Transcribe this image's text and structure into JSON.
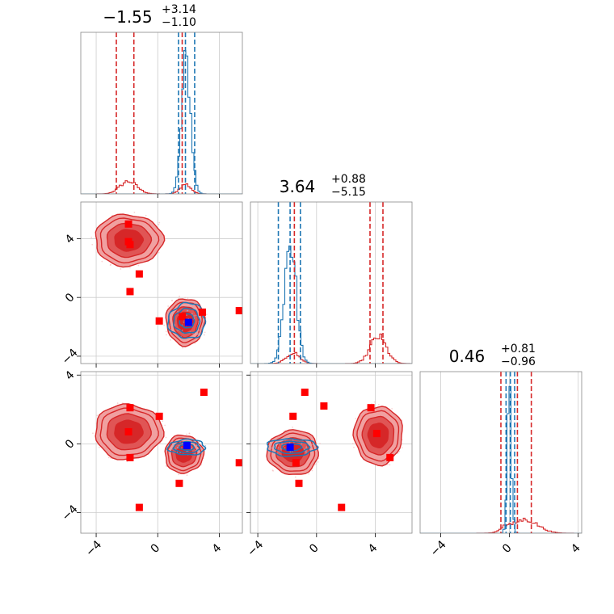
{
  "chart_data": {
    "type": "corner",
    "colors": {
      "red": "#d62728",
      "blue": "#1f77b4",
      "red_light": "#f0a0a0",
      "red_mid": "#e05555",
      "marker_red": "#ff0000",
      "marker_blue": "#0000ff",
      "grid": "#cccccc"
    },
    "ranges": [
      [
        -5,
        5.5
      ],
      [
        -4.5,
        6.5
      ],
      [
        -5.2,
        4.2
      ]
    ],
    "ticks": [
      {
        "values": [
          -4,
          0,
          4
        ],
        "labels": [
          "−4",
          "0",
          "4"
        ]
      },
      {
        "values": [
          -4,
          0,
          4
        ],
        "labels": [
          "−4",
          "0",
          "4"
        ]
      },
      {
        "values": [
          -4,
          0,
          4
        ],
        "labels": [
          "−4",
          "0",
          "4"
        ]
      }
    ],
    "titles": [
      {
        "value": "−1.55",
        "plus": "+3.14",
        "minus": "−1.10"
      },
      {
        "value": "3.64",
        "plus": "+0.88",
        "minus": "−5.15"
      },
      {
        "value": "0.46",
        "plus": "+0.81",
        "minus": "−0.96"
      }
    ],
    "diag_red_quantiles": [
      [
        -2.69,
        -1.55,
        1.59
      ],
      [
        -1.51,
        3.64,
        4.52
      ],
      [
        -0.5,
        0.46,
        1.27
      ]
    ],
    "diag_blue_quantiles": [
      [
        1.35,
        1.8,
        2.4
      ],
      [
        -2.6,
        -1.8,
        -1.1
      ],
      [
        -0.2,
        0.05,
        0.3
      ]
    ],
    "diag_red_modes": [
      [
        {
          "mu": -1.9,
          "sd": 0.55,
          "w": 0.26
        },
        {
          "mu": 1.8,
          "sd": 0.35,
          "w": 0.2
        }
      ],
      [
        {
          "mu": 4.2,
          "sd": 0.55,
          "w": 0.55
        },
        {
          "mu": -1.6,
          "sd": 0.45,
          "w": 0.22
        }
      ],
      [
        {
          "mu": 0.9,
          "sd": 0.75,
          "w": 0.28
        },
        {
          "mu": -0.3,
          "sd": 0.25,
          "w": 0.08
        }
      ]
    ],
    "diag_blue_modes": [
      [
        {
          "mu": 1.85,
          "sd": 0.3,
          "w": 0.9
        }
      ],
      [
        {
          "mu": -1.8,
          "sd": 0.4,
          "w": 0.85
        }
      ],
      [
        {
          "mu": 0.0,
          "sd": 0.12,
          "w": 0.95
        }
      ]
    ],
    "blobs_red": {
      "p10": [
        {
          "cx": -1.9,
          "cy": 3.9,
          "rx": 2.2,
          "ry": 1.75
        },
        {
          "cx": 1.8,
          "cy": -1.65,
          "rx": 1.25,
          "ry": 1.6
        }
      ],
      "p20": [
        {
          "cx": -1.9,
          "cy": 0.7,
          "rx": 2.2,
          "ry": 1.6
        },
        {
          "cx": 1.7,
          "cy": -0.6,
          "rx": 1.25,
          "ry": 1.1
        }
      ],
      "p21": [
        {
          "cx": -1.6,
          "cy": -0.5,
          "rx": 1.75,
          "ry": 1.3
        },
        {
          "cx": 4.2,
          "cy": 0.5,
          "rx": 1.65,
          "ry": 1.7
        }
      ]
    },
    "blobs_blue": {
      "p10": [
        {
          "cx": 1.9,
          "cy": -1.6,
          "rx": 1.2,
          "ry": 1.2
        }
      ],
      "p20": [
        {
          "cx": 1.9,
          "cy": -0.2,
          "rx": 1.2,
          "ry": 0.45
        }
      ],
      "p21": [
        {
          "cx": -1.7,
          "cy": -0.2,
          "rx": 1.7,
          "ry": 0.5
        }
      ]
    },
    "markers_red": {
      "p10": [
        [
          -1.9,
          5.0
        ],
        [
          -1.9,
          3.8
        ],
        [
          -1.8,
          3.6
        ],
        [
          -1.2,
          1.6
        ],
        [
          -1.8,
          0.4
        ],
        [
          1.6,
          -1.3
        ],
        [
          2.9,
          -1.0
        ],
        [
          0.1,
          -1.6
        ],
        [
          5.3,
          -0.9
        ]
      ],
      "p20": [
        [
          -1.8,
          2.1
        ],
        [
          0.1,
          1.6
        ],
        [
          -1.9,
          0.7
        ],
        [
          -1.8,
          -0.8
        ],
        [
          3.0,
          3.0
        ],
        [
          1.4,
          -2.3
        ],
        [
          -1.2,
          -3.7
        ],
        [
          5.3,
          -1.1
        ]
      ],
      "p21": [
        [
          -0.8,
          3.0
        ],
        [
          0.5,
          2.2
        ],
        [
          -1.6,
          1.6
        ],
        [
          3.7,
          2.1
        ],
        [
          4.1,
          0.6
        ],
        [
          -1.4,
          -1.1
        ],
        [
          -1.2,
          -2.3
        ],
        [
          5.0,
          -0.8
        ],
        [
          1.7,
          -3.7
        ]
      ]
    },
    "markers_blue": {
      "p10": [
        [
          2.0,
          -1.7
        ]
      ],
      "p20": [
        [
          1.9,
          -0.1
        ]
      ],
      "p21": [
        [
          -1.8,
          -0.2
        ]
      ]
    }
  }
}
